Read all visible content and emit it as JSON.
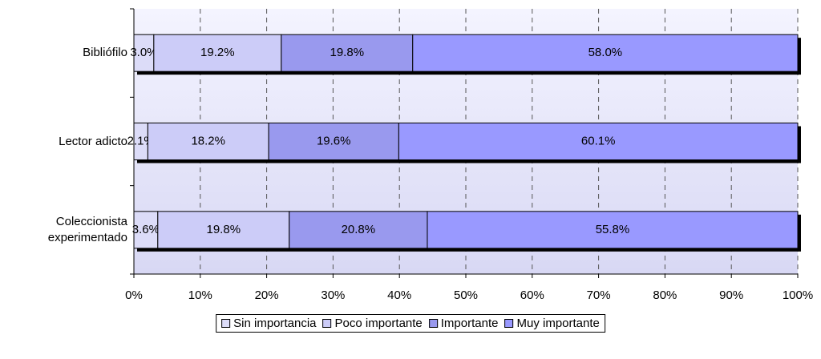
{
  "chart_data": {
    "type": "stacked-bar-horizontal",
    "categories": [
      "Bibliófilo",
      "Lector adicto",
      "Coleccionista experimentado"
    ],
    "series": [
      {
        "name": "Sin importancia",
        "color": "#dcdcf8",
        "values": [
          3.0,
          2.1,
          3.6
        ],
        "value_labels": [
          "3.0%",
          "2.1%",
          "3.6%"
        ]
      },
      {
        "name": "Poco importante",
        "color": "#ccccf8",
        "values": [
          19.2,
          18.2,
          19.8
        ],
        "value_labels": [
          "19.2%",
          "18.2%",
          "19.8%"
        ]
      },
      {
        "name": "Importante",
        "color": "#9999ee",
        "values": [
          19.8,
          19.6,
          20.8
        ],
        "value_labels": [
          "19.8%",
          "19.6%",
          "20.8%"
        ]
      },
      {
        "name": "Muy importante",
        "color": "#9999ff",
        "values": [
          58.0,
          60.1,
          55.8
        ],
        "value_labels": [
          "58.0%",
          "60.1%",
          "55.8%"
        ]
      }
    ],
    "xlim": [
      0,
      100
    ],
    "xticks": [
      {
        "value": 0,
        "label": "0%"
      },
      {
        "value": 10,
        "label": "10%"
      },
      {
        "value": 20,
        "label": "20%"
      },
      {
        "value": 30,
        "label": "30%"
      },
      {
        "value": 40,
        "label": "40%"
      },
      {
        "value": 50,
        "label": "50%"
      },
      {
        "value": 60,
        "label": "60%"
      },
      {
        "value": 70,
        "label": "70%"
      },
      {
        "value": 80,
        "label": "80%"
      },
      {
        "value": 90,
        "label": "90%"
      },
      {
        "value": 100,
        "label": "100%"
      }
    ],
    "grid": true,
    "legend": "bottom"
  }
}
